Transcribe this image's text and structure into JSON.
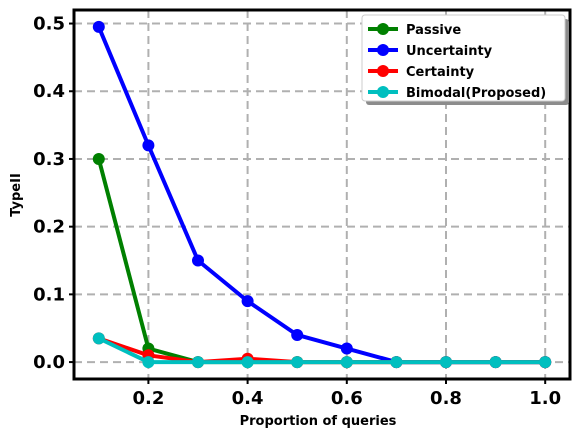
{
  "chart_data": {
    "type": "line",
    "xlabel": "Proportion of queries",
    "ylabel": "TypeII",
    "xlim": [
      0.05,
      1.05
    ],
    "ylim": [
      -0.025,
      0.52
    ],
    "x_ticks": [
      0.2,
      0.4,
      0.6,
      0.8,
      1.0
    ],
    "x_tick_labels": [
      "0.2",
      "0.4",
      "0.6",
      "0.8",
      "1.0"
    ],
    "y_ticks": [
      0.0,
      0.1,
      0.2,
      0.3,
      0.4,
      0.5
    ],
    "y_tick_labels": [
      "0.0",
      "0.1",
      "0.2",
      "0.3",
      "0.4",
      "0.5"
    ],
    "grid": true,
    "legend_position": "top-right",
    "x": [
      0.1,
      0.2,
      0.3,
      0.4,
      0.5,
      0.6,
      0.7,
      0.8,
      0.9,
      1.0
    ],
    "series": [
      {
        "name": "Passive",
        "color": "#008000",
        "values": [
          0.3,
          0.02,
          0.0,
          0.0,
          0.0,
          0.0,
          0.0,
          0.0,
          0.0,
          0.0
        ]
      },
      {
        "name": "Uncertainty",
        "color": "#0000ff",
        "values": [
          0.495,
          0.32,
          0.15,
          0.09,
          0.04,
          0.02,
          0.0,
          0.0,
          0.0,
          0.0
        ]
      },
      {
        "name": "Certainty",
        "color": "#ff0000",
        "values": [
          0.035,
          0.01,
          0.0,
          0.005,
          0.0,
          0.0,
          0.0,
          0.0,
          0.0,
          0.0
        ]
      },
      {
        "name": "Bimodal(Proposed)",
        "color": "#00bfbf",
        "values": [
          0.035,
          0.0,
          0.0,
          0.0,
          0.0,
          0.0,
          0.0,
          0.0,
          0.0,
          0.0
        ]
      }
    ]
  }
}
